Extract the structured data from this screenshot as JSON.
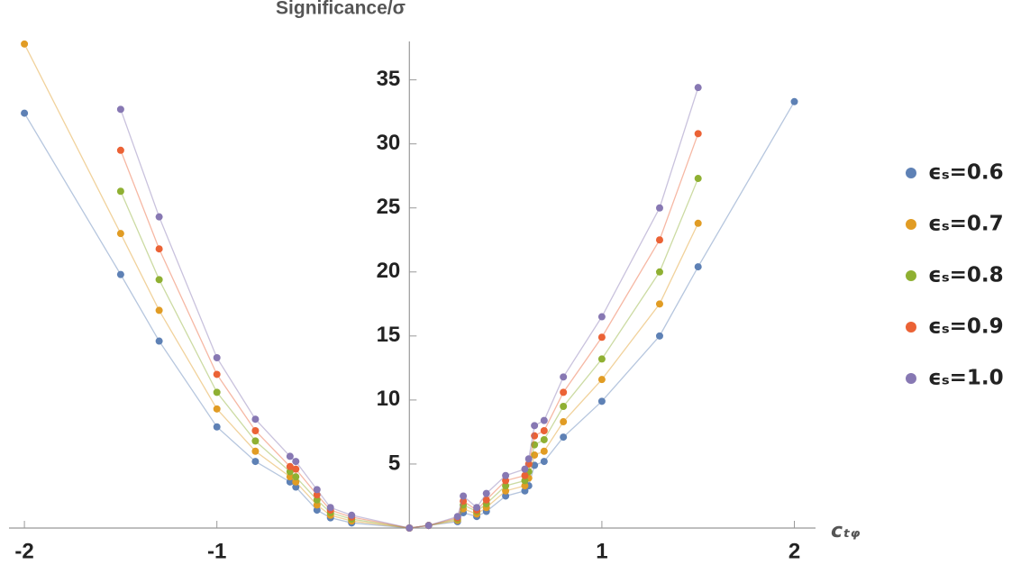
{
  "chart_data": {
    "type": "line",
    "title": "Significance/σ",
    "x_label": "cₜᵩ",
    "x": [
      -2,
      -1.5,
      -1.3,
      -1,
      -0.8,
      -0.62,
      -0.59,
      -0.48,
      -0.41,
      -0.3,
      0,
      0.1,
      0.25,
      0.28,
      0.35,
      0.4,
      0.5,
      0.6,
      0.62,
      0.65,
      0.7,
      0.8,
      1,
      1.3,
      1.5,
      2
    ],
    "series": [
      {
        "name": "ϵₛ=0.6",
        "color": "#5e81b5",
        "values": [
          32.4,
          19.8,
          14.6,
          7.9,
          5.2,
          3.6,
          3.2,
          1.4,
          0.8,
          0.4,
          0,
          0.2,
          0.5,
          1.2,
          0.9,
          1.3,
          2.5,
          2.9,
          3.3,
          4.9,
          5.2,
          7.1,
          9.9,
          15.0,
          20.4,
          33.3
        ]
      },
      {
        "name": "ϵₛ=0.7",
        "color": "#e19c24",
        "values": [
          37.8,
          23.0,
          17.0,
          9.3,
          6.0,
          4.0,
          3.6,
          1.8,
          1.0,
          0.55,
          0,
          0.2,
          0.6,
          1.5,
          1.1,
          1.6,
          2.9,
          3.3,
          3.9,
          5.7,
          6.0,
          8.3,
          11.6,
          17.5,
          23.8,
          null
        ]
      },
      {
        "name": "ϵₛ=0.8",
        "color": "#8fb032",
        "values": [
          null,
          26.3,
          19.4,
          10.6,
          6.8,
          4.4,
          4.0,
          2.2,
          1.2,
          0.7,
          0,
          0.2,
          0.7,
          1.8,
          1.3,
          1.9,
          3.3,
          3.7,
          4.4,
          6.5,
          6.9,
          9.5,
          13.2,
          20.0,
          27.3,
          null
        ]
      },
      {
        "name": "ϵₛ=0.9",
        "color": "#eb6235",
        "values": [
          null,
          29.5,
          21.8,
          12.0,
          7.6,
          4.8,
          4.6,
          2.6,
          1.4,
          0.85,
          0,
          0.2,
          0.8,
          2.1,
          1.4,
          2.2,
          3.7,
          4.1,
          5.0,
          7.2,
          7.6,
          10.6,
          14.9,
          22.5,
          30.8,
          null
        ]
      },
      {
        "name": "ϵₛ=1.0",
        "color": "#8778b3",
        "values": [
          null,
          32.7,
          24.3,
          13.3,
          8.5,
          5.6,
          5.2,
          3.0,
          1.6,
          1.0,
          0,
          0.2,
          0.9,
          2.5,
          1.6,
          2.7,
          4.1,
          4.6,
          5.4,
          8.0,
          8.4,
          11.8,
          16.5,
          25.0,
          34.4,
          null
        ]
      }
    ],
    "xlim": [
      -2.08,
      2.11
    ],
    "xticks": [
      -2,
      -1,
      1,
      2
    ],
    "ylim": [
      0,
      38
    ],
    "yticks": [
      5,
      10,
      15,
      20,
      25,
      30,
      35
    ],
    "legend": "right"
  }
}
